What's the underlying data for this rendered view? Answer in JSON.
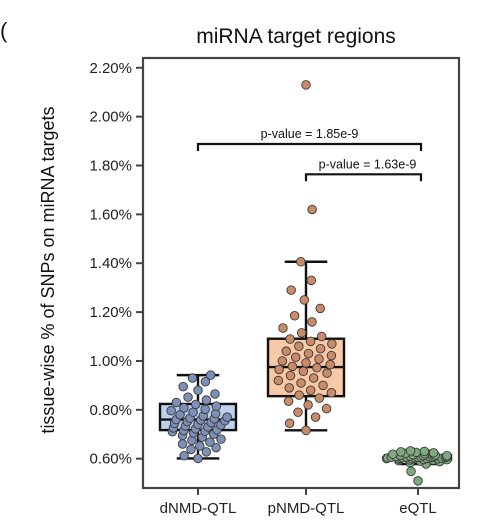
{
  "panel_label": "(",
  "chart_data": {
    "type": "box",
    "title": "miRNA target regions",
    "xlabel": "",
    "ylabel": "tissue-wise % of SNPs on miRNA targets",
    "ylim": [
      0.0048,
      0.0224
    ],
    "yticks": [
      "0.60%",
      "0.80%",
      "1.00%",
      "1.20%",
      "1.40%",
      "1.60%",
      "1.80%",
      "2.00%",
      "2.20%"
    ],
    "ytick_values": [
      0.006,
      0.008,
      0.01,
      0.012,
      0.014,
      0.016,
      0.018,
      0.02,
      0.022
    ],
    "categories": [
      "dNMD-QTL",
      "pNMD-QTL",
      "eQTL"
    ],
    "grid": false,
    "series": [
      {
        "category": "dNMD-QTL",
        "box_color": "#bcd3ee",
        "point_color": "#7e8fb8",
        "whisker_low": 0.00601,
        "q1": 0.00717,
        "median": 0.0076,
        "q3": 0.00824,
        "whisker_high": 0.00942,
        "points": [
          0.00601,
          0.00612,
          0.00628,
          0.00638,
          0.00645,
          0.00652,
          0.0066,
          0.00668,
          0.00675,
          0.0068,
          0.00688,
          0.00695,
          0.007,
          0.00705,
          0.0071,
          0.00712,
          0.00715,
          0.00718,
          0.00722,
          0.00726,
          0.0073,
          0.00734,
          0.00738,
          0.00741,
          0.00745,
          0.00748,
          0.00752,
          0.00755,
          0.00758,
          0.0076,
          0.00763,
          0.00766,
          0.0077,
          0.00775,
          0.0078,
          0.00785,
          0.0079,
          0.00796,
          0.00802,
          0.00808,
          0.00815,
          0.00822,
          0.0083,
          0.0084,
          0.00852,
          0.00865,
          0.0088,
          0.00895,
          0.00915,
          0.0093,
          0.00942
        ]
      },
      {
        "category": "pNMD-QTL",
        "box_color": "#f8c9a6",
        "point_color": "#c98b68",
        "whisker_low": 0.00716,
        "q1": 0.00856,
        "median": 0.00975,
        "q3": 0.01091,
        "whisker_high": 0.01406,
        "points": [
          0.00716,
          0.00745,
          0.0077,
          0.0079,
          0.00805,
          0.0082,
          0.00835,
          0.00848,
          0.0086,
          0.0087,
          0.0088,
          0.0089,
          0.009,
          0.0091,
          0.0092,
          0.0093,
          0.0094,
          0.0095,
          0.00958,
          0.00965,
          0.00972,
          0.00978,
          0.00985,
          0.00992,
          0.01,
          0.01008,
          0.01015,
          0.01022,
          0.0103,
          0.0104,
          0.0105,
          0.0106,
          0.0107,
          0.0108,
          0.0109,
          0.011,
          0.01115,
          0.01135,
          0.0116,
          0.01185,
          0.01215,
          0.0125,
          0.0129,
          0.0133,
          0.01406,
          0.0162,
          0.0213
        ]
      },
      {
        "category": "eQTL",
        "box_color": "#a7d3a7",
        "point_color": "#7faa7f",
        "whisker_low": 0.00578,
        "q1": 0.00596,
        "median": 0.00604,
        "q3": 0.00614,
        "whisker_high": 0.00632,
        "points": [
          0.00509,
          0.00548,
          0.00578,
          0.00584,
          0.00588,
          0.0059,
          0.00592,
          0.00594,
          0.00595,
          0.00596,
          0.00597,
          0.00598,
          0.00599,
          0.006,
          0.006,
          0.00601,
          0.00602,
          0.00602,
          0.00603,
          0.00603,
          0.00604,
          0.00604,
          0.00605,
          0.00605,
          0.00606,
          0.00606,
          0.00607,
          0.00608,
          0.00608,
          0.00609,
          0.0061,
          0.00611,
          0.00612,
          0.00613,
          0.00614,
          0.00615,
          0.00616,
          0.00618,
          0.0062,
          0.00622,
          0.00624,
          0.00626,
          0.00628,
          0.0063,
          0.00632
        ]
      }
    ],
    "annotations": [
      {
        "text": "p-value = 1.85e-9",
        "from": "dNMD-QTL",
        "to": "eQTL",
        "y": 0.01888
      },
      {
        "text": "p-value = 1.63e-9",
        "from": "pNMD-QTL",
        "to": "eQTL",
        "y": 0.01764
      }
    ]
  }
}
